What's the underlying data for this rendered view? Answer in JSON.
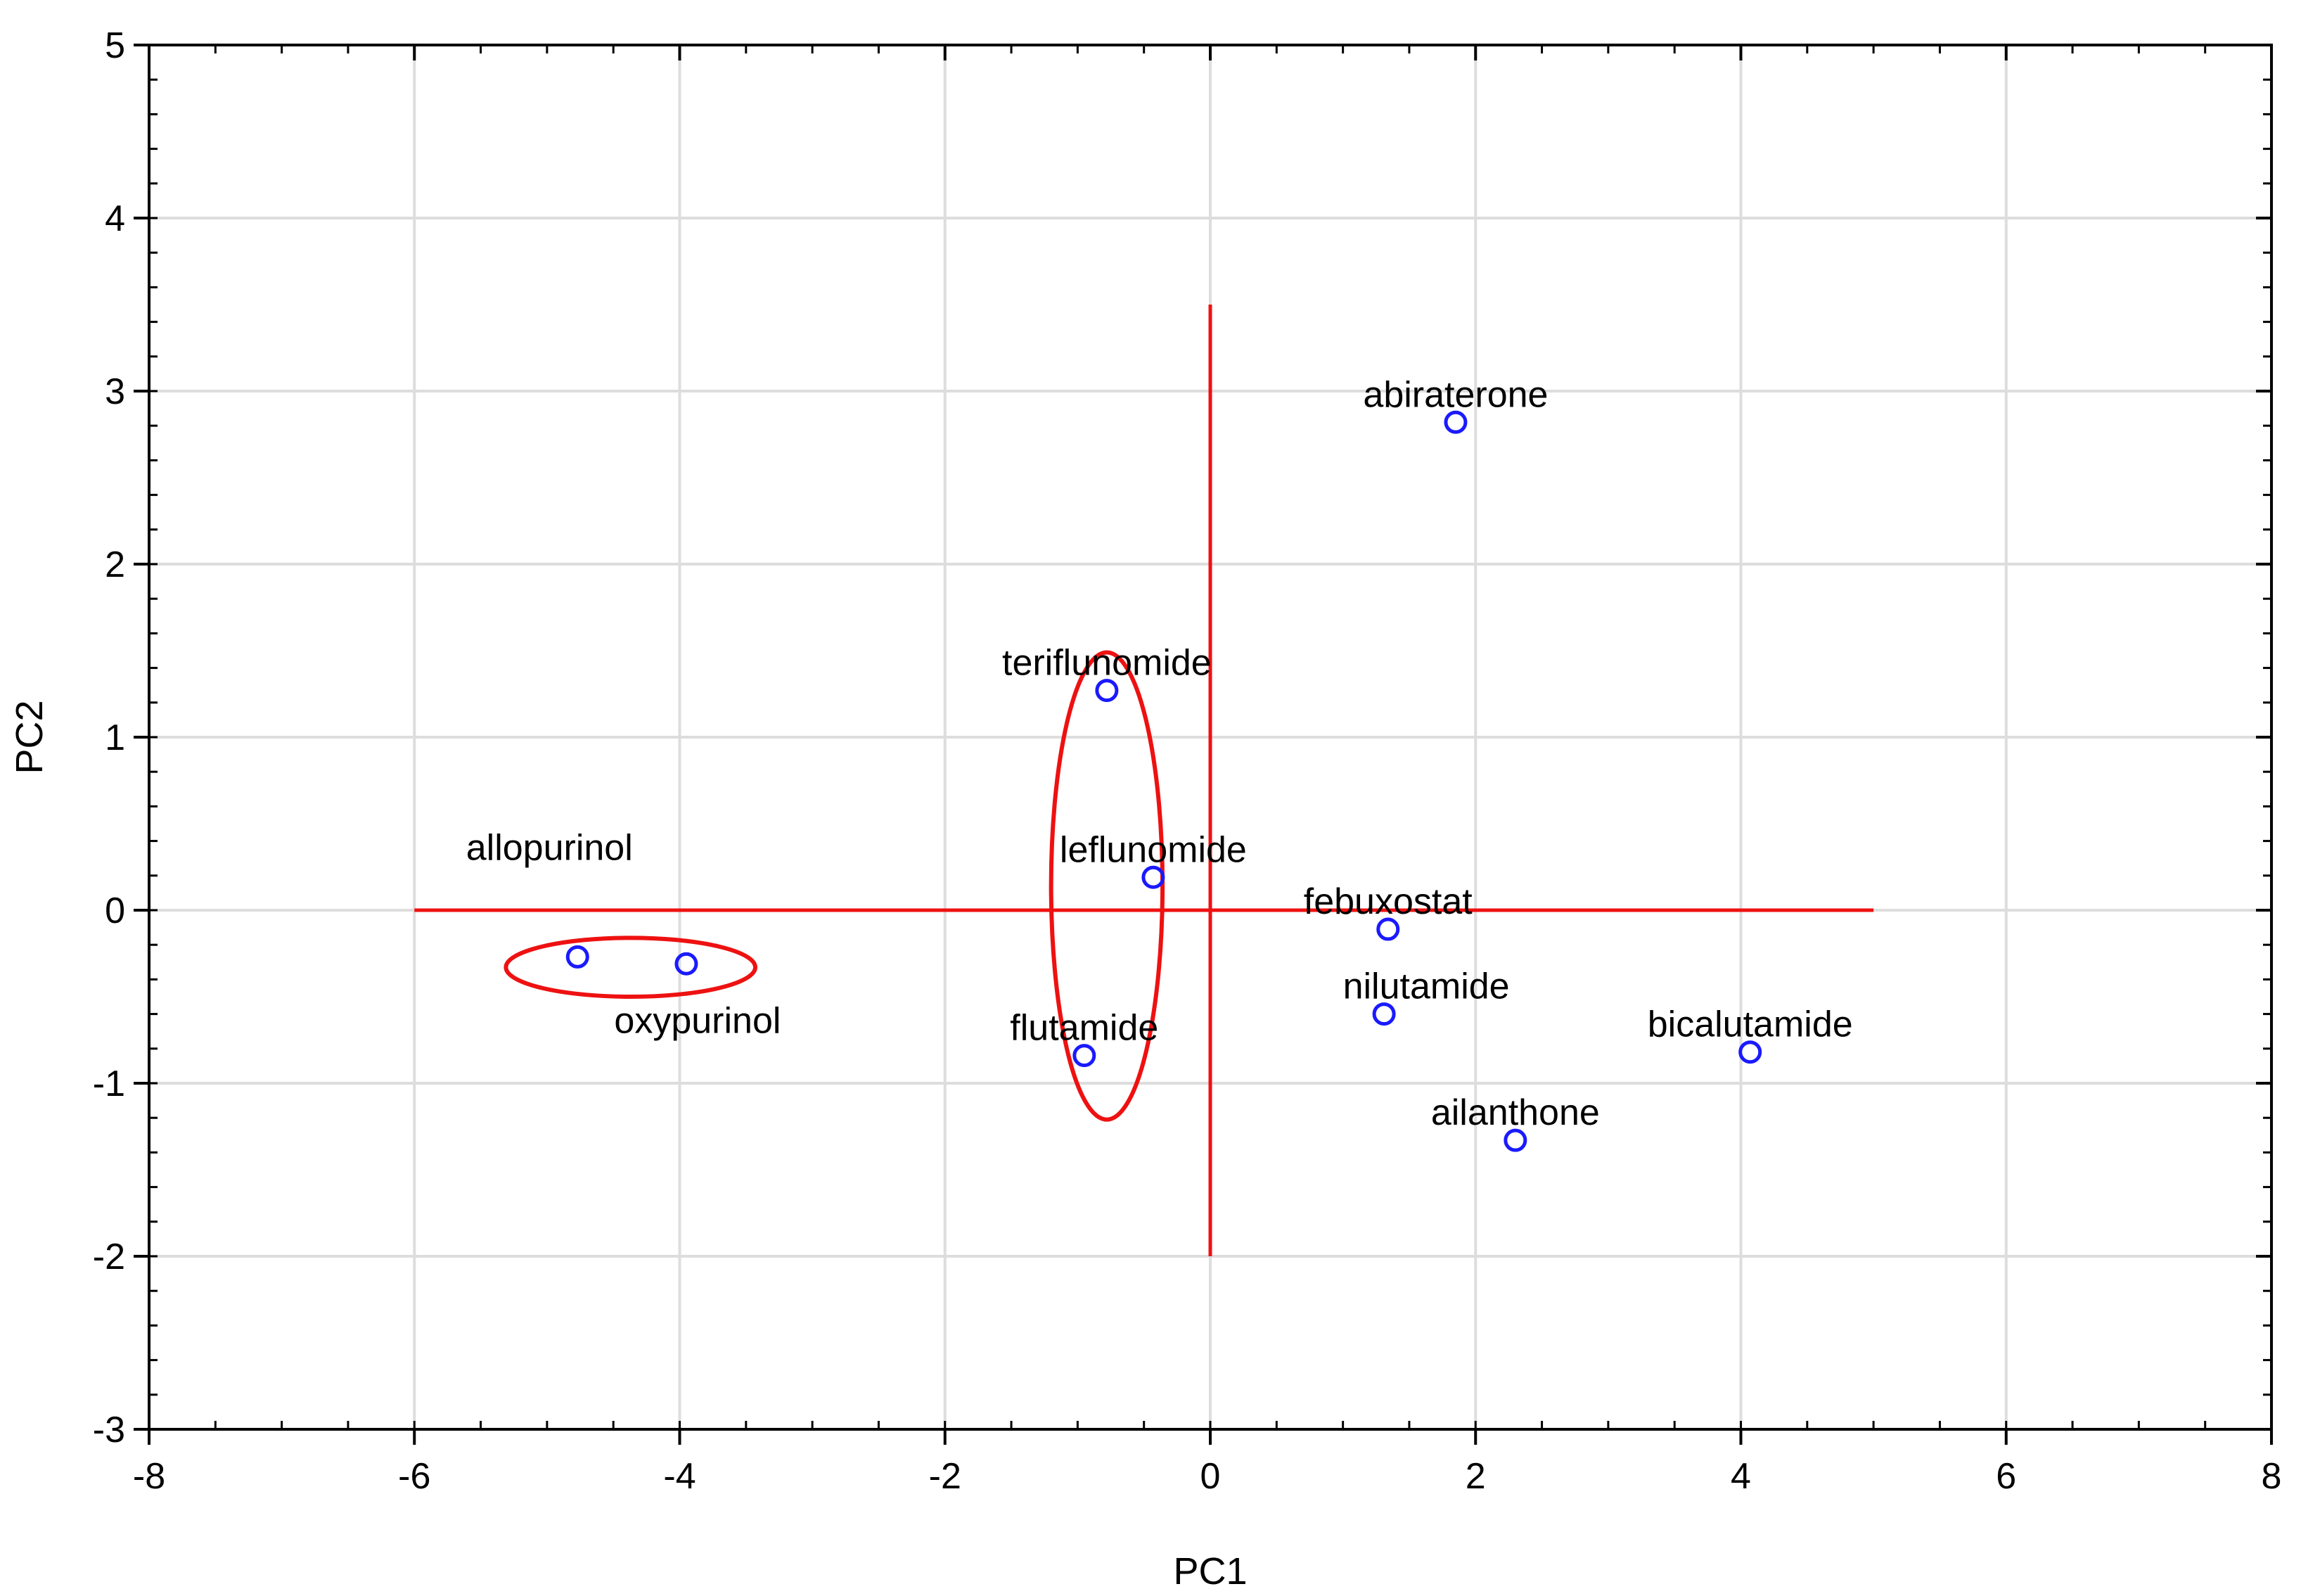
{
  "chart_data": {
    "type": "scatter",
    "xlabel": "PC1",
    "ylabel": "PC2",
    "xlim": [
      -8,
      8
    ],
    "ylim": [
      -3,
      5
    ],
    "x_ticks": [
      -8,
      -6,
      -4,
      -2,
      0,
      2,
      4,
      6,
      8
    ],
    "y_ticks": [
      -3,
      -2,
      -1,
      0,
      1,
      2,
      3,
      4,
      5
    ],
    "grid": true,
    "marker": "open-circle",
    "colors": {
      "points": "#1a1aff",
      "reference": "#ee1111",
      "grid": "#dddddd",
      "axes": "#000000"
    },
    "points": [
      {
        "label": "abiraterone",
        "x": 1.85,
        "y": 2.82
      },
      {
        "label": "teriflunomide",
        "x": -0.78,
        "y": 1.27
      },
      {
        "label": "leflunomide",
        "x": -0.43,
        "y": 0.19
      },
      {
        "label": "febuxostat",
        "x": 1.34,
        "y": -0.11
      },
      {
        "label": "nilutamide",
        "x": 1.31,
        "y": -0.6
      },
      {
        "label": "flutamide",
        "x": -0.95,
        "y": -0.84
      },
      {
        "label": "bicalutamide",
        "x": 4.07,
        "y": -0.82
      },
      {
        "label": "ailanthone",
        "x": 2.3,
        "y": -1.33
      },
      {
        "label": "allopurinol",
        "x": -4.77,
        "y": -0.27
      },
      {
        "label": "oxypurinol",
        "x": -3.95,
        "y": -0.31
      }
    ],
    "reference_lines": [
      {
        "orientation": "horizontal",
        "y": 0,
        "x_from": -6,
        "x_to": 5
      },
      {
        "orientation": "vertical",
        "x": 0,
        "y_from": -2,
        "y_to": 3.5
      }
    ],
    "ellipses": [
      {
        "cx": -0.78,
        "cy": 0.14,
        "rx": 0.42,
        "ry": 1.35
      },
      {
        "cx": -4.37,
        "cy": -0.33,
        "rx": 0.94,
        "ry": 0.17
      }
    ]
  }
}
